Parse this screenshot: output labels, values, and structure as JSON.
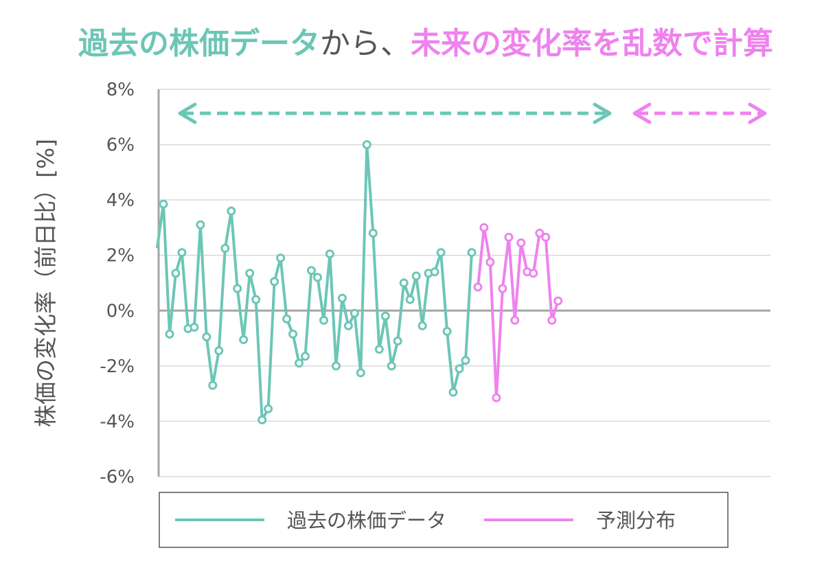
{
  "title": {
    "part1": "過去の株価データ",
    "part2": "から、",
    "part3": "未来の変化率を乱数で計算"
  },
  "colors": {
    "historical": "#6CC6B6",
    "forecast": "#EE82EE",
    "title_neutral": "#555555",
    "axis": "#A6A6A6",
    "grid": "#D9D9D9",
    "text": "#555555"
  },
  "chart_data": {
    "type": "line",
    "title": "過去の株価データから、未来の変化率を乱数で計算",
    "ylabel": "株価の変化率（前日比）[%]",
    "xlabel": "",
    "ylim": [
      -6,
      8
    ],
    "yticks": [
      8,
      6,
      4,
      2,
      0,
      -2,
      -4,
      -6
    ],
    "ytick_labels": [
      "8%",
      "6%",
      "4%",
      "2%",
      "0%",
      "-2%",
      "-4%",
      "-6%"
    ],
    "grid": true,
    "legend_position": "bottom",
    "series": [
      {
        "name": "過去の株価データ",
        "color": "#6CC6B6",
        "points": [
          [
            0,
            2.3
          ],
          [
            1,
            3.85
          ],
          [
            2,
            -0.85
          ],
          [
            3,
            1.35
          ],
          [
            4,
            2.1
          ],
          [
            5,
            -0.65
          ],
          [
            6,
            -0.6
          ],
          [
            7,
            3.1
          ],
          [
            8,
            -0.95
          ],
          [
            9,
            -2.7
          ],
          [
            10,
            -1.45
          ],
          [
            11,
            2.25
          ],
          [
            12,
            3.6
          ],
          [
            13,
            0.8
          ],
          [
            14,
            -1.05
          ],
          [
            15,
            1.35
          ],
          [
            16,
            0.4
          ],
          [
            17,
            -3.95
          ],
          [
            18,
            -3.55
          ],
          [
            19,
            1.05
          ],
          [
            20,
            1.9
          ],
          [
            21,
            -0.3
          ],
          [
            22,
            -0.85
          ],
          [
            23,
            -1.9
          ],
          [
            24,
            -1.65
          ],
          [
            25,
            1.45
          ],
          [
            26,
            1.2
          ],
          [
            27,
            -0.35
          ],
          [
            28,
            2.05
          ],
          [
            29,
            -2.0
          ],
          [
            30,
            0.45
          ],
          [
            31,
            -0.55
          ],
          [
            32,
            -0.1
          ],
          [
            33,
            -2.25
          ],
          [
            34,
            6.0
          ],
          [
            35,
            2.8
          ],
          [
            36,
            -1.4
          ],
          [
            37,
            -0.2
          ],
          [
            38,
            -2.0
          ],
          [
            39,
            -1.1
          ],
          [
            40,
            1.0
          ],
          [
            41,
            0.4
          ],
          [
            42,
            1.25
          ],
          [
            43,
            -0.55
          ],
          [
            44,
            1.35
          ],
          [
            45,
            1.4
          ],
          [
            46,
            2.1
          ],
          [
            47,
            -0.75
          ],
          [
            48,
            -2.95
          ],
          [
            49,
            -2.1
          ],
          [
            50,
            -1.8
          ],
          [
            51,
            2.1
          ]
        ]
      },
      {
        "name": "予測分布",
        "color": "#EE82EE",
        "points": [
          [
            52,
            0.85
          ],
          [
            53,
            3.0
          ],
          [
            54,
            1.75
          ],
          [
            55,
            -3.15
          ],
          [
            56,
            0.8
          ],
          [
            57,
            2.65
          ],
          [
            58,
            -0.35
          ],
          [
            59,
            2.45
          ],
          [
            60,
            1.4
          ],
          [
            61,
            1.35
          ],
          [
            62,
            2.8
          ],
          [
            63,
            2.65
          ],
          [
            64,
            -0.35
          ],
          [
            65,
            0.35
          ]
        ]
      }
    ],
    "range_arrows": [
      {
        "series": "過去の株価データ",
        "style": "dashed",
        "direction": "both"
      },
      {
        "series": "予測分布",
        "style": "dashed",
        "direction": "both"
      }
    ]
  }
}
